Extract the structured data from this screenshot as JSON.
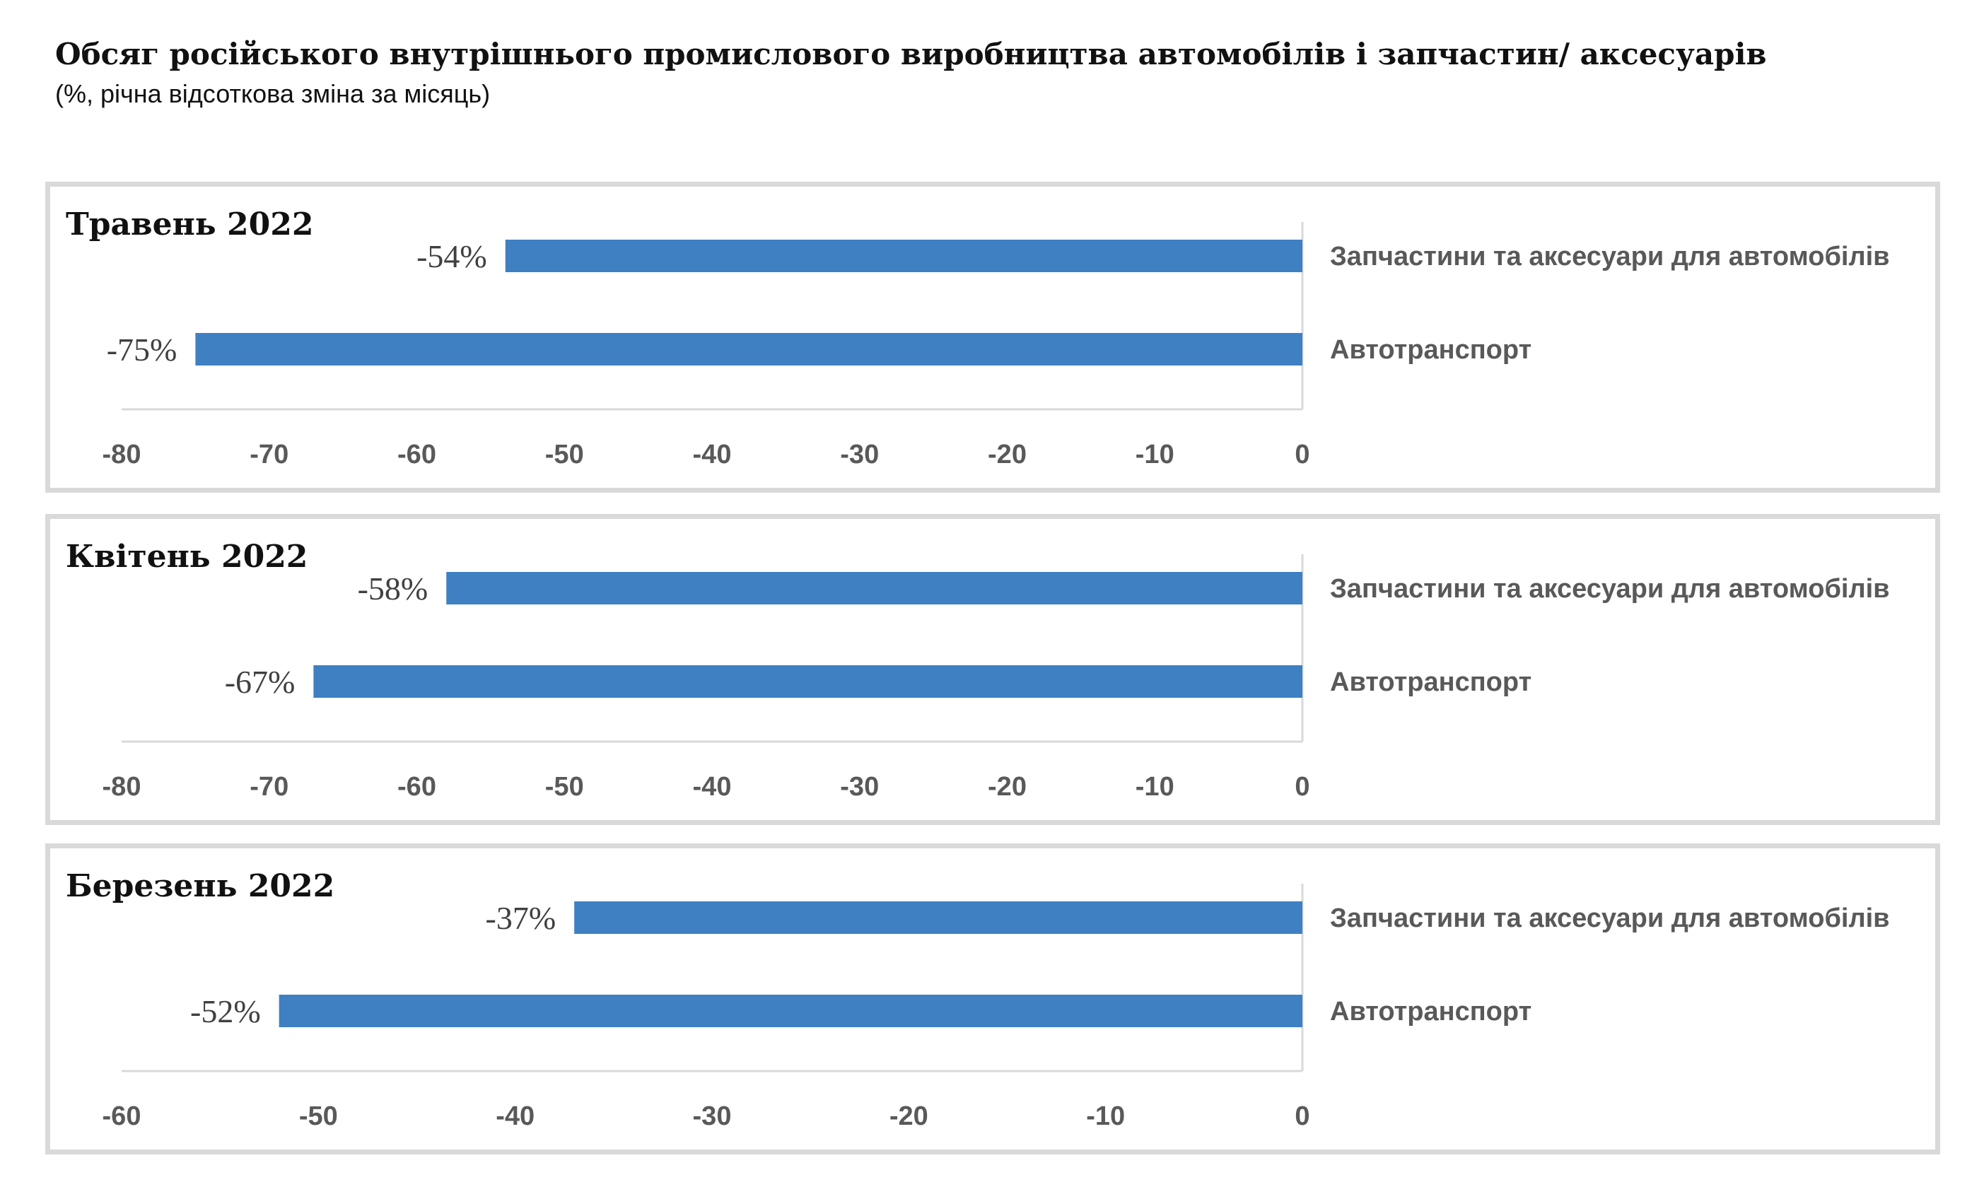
{
  "header": {
    "title": "Обсяг російського внутрішнього промислового виробництва автомобілів і запчастин/ аксесуарів",
    "subtitle": "(%, річна відсоткова зміна за місяць)"
  },
  "colors": {
    "bar": "#3e80c2",
    "axis": "#d9d9d9",
    "panel_border": "#d9d9d9"
  },
  "chart_data": [
    {
      "type": "bar",
      "orientation": "horizontal",
      "title": "Травень 2022",
      "categories": [
        "Запчастини та аксесуари для автомобілів",
        "Автотранспорт"
      ],
      "values": [
        -54,
        -75
      ],
      "data_labels": [
        "-54%",
        "-75%"
      ],
      "xlim": [
        -80,
        0
      ],
      "ticks": [
        -80,
        -70,
        -60,
        -50,
        -40,
        -30,
        -20,
        -10,
        0
      ],
      "grid": false,
      "legend": "none"
    },
    {
      "type": "bar",
      "orientation": "horizontal",
      "title": "Квітень 2022",
      "categories": [
        "Запчастини та аксесуари для автомобілів",
        "Автотранспорт"
      ],
      "values": [
        -58,
        -67
      ],
      "data_labels": [
        "-58%",
        "-67%"
      ],
      "xlim": [
        -80,
        0
      ],
      "ticks": [
        -80,
        -70,
        -60,
        -50,
        -40,
        -30,
        -20,
        -10,
        0
      ],
      "grid": false,
      "legend": "none"
    },
    {
      "type": "bar",
      "orientation": "horizontal",
      "title": "Березень 2022",
      "categories": [
        "Запчастини та аксесуари для автомобілів",
        "Автотранспорт"
      ],
      "values": [
        -37,
        -52
      ],
      "data_labels": [
        "-37%",
        "-52%"
      ],
      "xlim": [
        -60,
        0
      ],
      "ticks": [
        -60,
        -50,
        -40,
        -30,
        -20,
        -10,
        0
      ],
      "grid": false,
      "legend": "none"
    }
  ]
}
